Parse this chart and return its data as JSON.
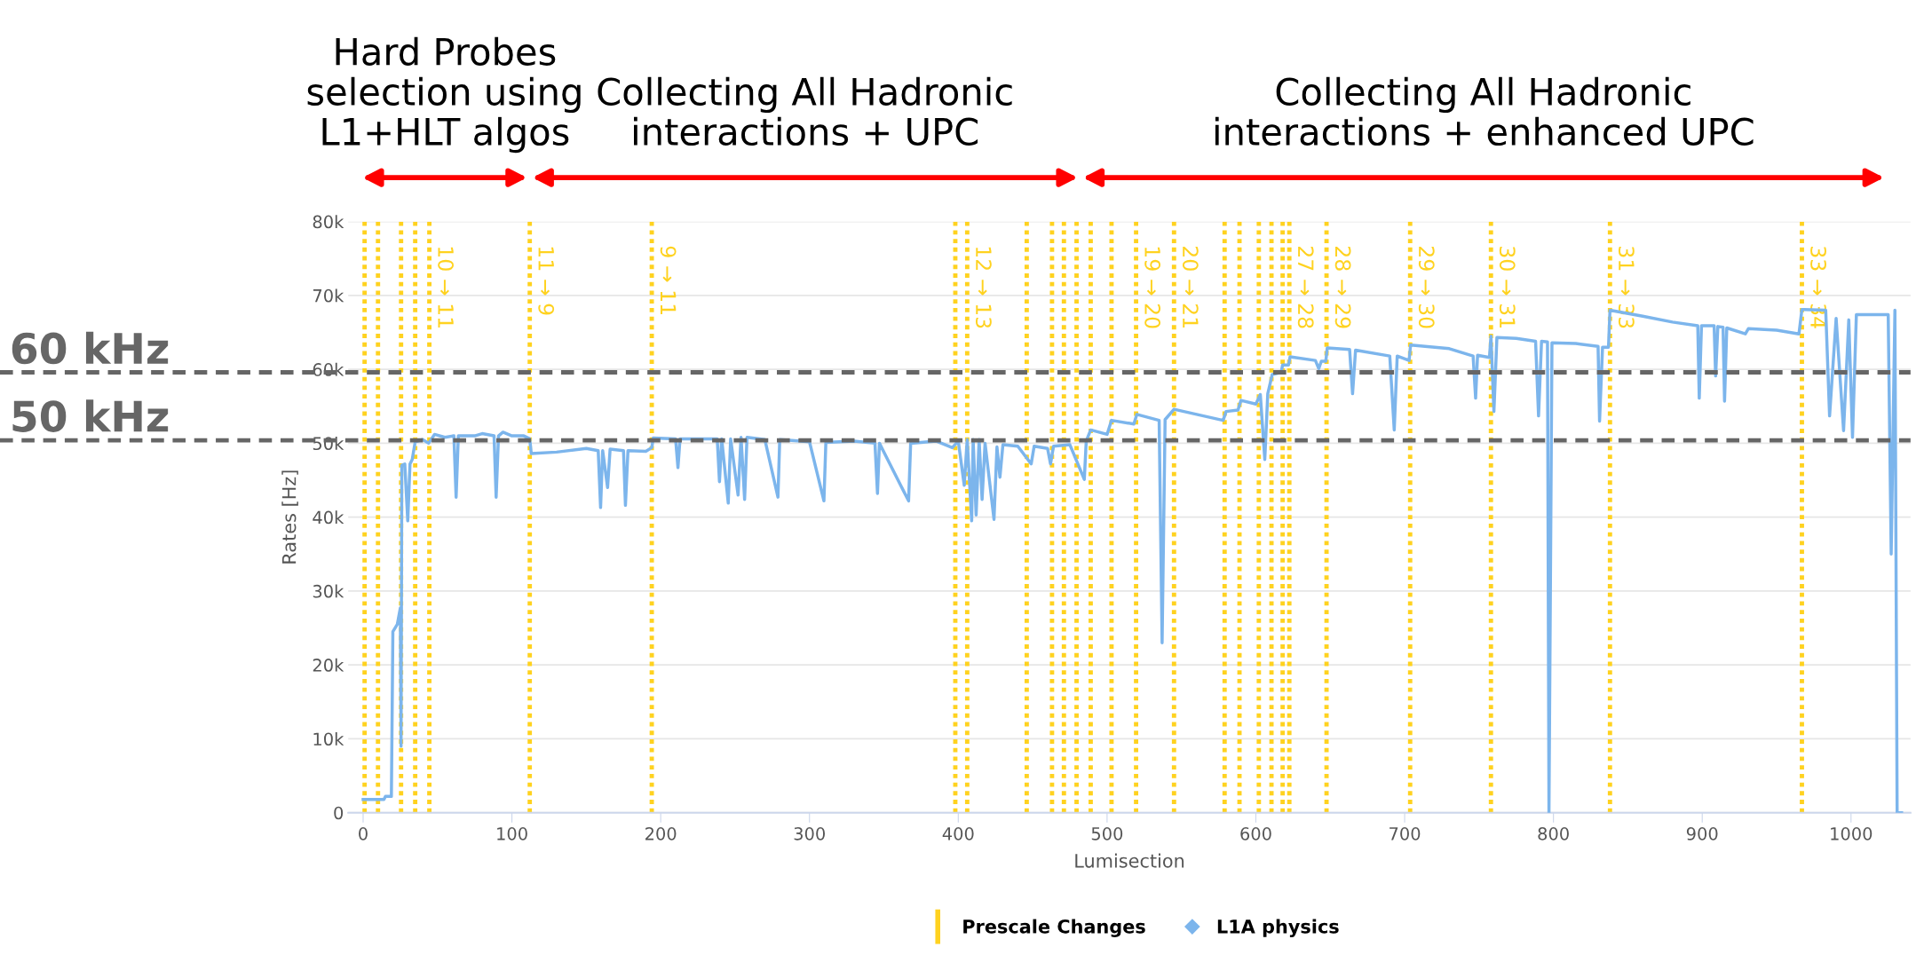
{
  "chart_data": {
    "type": "line",
    "xlabel": "Lumisection",
    "ylabel": "Rates [Hz]",
    "xlim": [
      -10,
      1040
    ],
    "xticks": [
      0,
      100,
      200,
      300,
      400,
      500,
      600,
      700,
      800,
      900,
      1000
    ],
    "ylim": [
      0,
      80000
    ],
    "yticks": [
      0,
      {
        "value": 10000,
        "label": "10k"
      },
      {
        "value": 20000,
        "label": "20k"
      },
      {
        "value": 30000,
        "label": "30k"
      },
      {
        "value": 40000,
        "label": "40k"
      },
      {
        "value": 50000,
        "label": "50k"
      },
      {
        "value": 60000,
        "label": "60k"
      },
      {
        "value": 70000,
        "label": "70k"
      },
      {
        "value": 80000,
        "label": "80k"
      }
    ],
    "grid": "y",
    "legend": "bottom",
    "marker": "none",
    "line_style": "solid",
    "annotations": [
      "Prescale Changes",
      "Hard Probes\nselection using\nL1+HLT algos",
      "Collecting All Hadronic\ninteractions + UPC",
      "Collecting All Hadronic\ninteractions + enhanced UPC"
    ],
    "series": [
      {
        "name": "L1A physics",
        "color": "#7cb5ec",
        "x": [
          0,
          14,
          15,
          19,
          20,
          23,
          25,
          25.5,
          26,
          28,
          30,
          31.5,
          33,
          35,
          40,
          44,
          48,
          55,
          61,
          62.5,
          64,
          75,
          80,
          88,
          89.4,
          91,
          94,
          100,
          108,
          112,
          113,
          130,
          150,
          158,
          159.6,
          161,
          164.3,
          166,
          175,
          176.3,
          178,
          190,
          194,
          195,
          210,
          211.6,
          213,
          230,
          238,
          239.5,
          241,
          245.4,
          247,
          252,
          254,
          256.4,
          258,
          270,
          278.8,
          280,
          300,
          309.7,
          311,
          330,
          344,
          345.7,
          347,
          366.6,
          368,
          385,
          396,
          400,
          404,
          406,
          409,
          410,
          412,
          414,
          416,
          418,
          424,
          426,
          428,
          430,
          440,
          449,
          451,
          460,
          462,
          464,
          475,
          484.7,
          486,
          489,
          500,
          503,
          518,
          520,
          535,
          537,
          539,
          545,
          578,
          580,
          588,
          590,
          600,
          603,
          606,
          608,
          611,
          617,
          618,
          622,
          623,
          640,
          642.3,
          644,
          647,
          648,
          663,
          665,
          667,
          690,
          693,
          695,
          703,
          704,
          730,
          746,
          747.7,
          749,
          757,
          758,
          760,
          762,
          775,
          788,
          790,
          792,
          796,
          797,
          799,
          815,
          830,
          831,
          833,
          837,
          838,
          860,
          880,
          897,
          898,
          899.5,
          908,
          909,
          910.5,
          914,
          915,
          916.5,
          929,
          931,
          950,
          965,
          967,
          983,
          985.6,
          990,
          995,
          998.5,
          1001,
          1003.6,
          1025,
          1027,
          1029.5,
          1031,
          1034
        ],
        "values": [
          1800,
          1800,
          2200,
          2200,
          24500,
          25500,
          27700,
          9000,
          47000,
          47200,
          39500,
          47200,
          47800,
          50200,
          50500,
          50000,
          51200,
          50800,
          51000,
          42700,
          51000,
          51000,
          51300,
          51000,
          42700,
          51000,
          51500,
          51000,
          51000,
          50600,
          48600,
          48800,
          49300,
          49000,
          41300,
          49000,
          44000,
          49200,
          49000,
          41600,
          49000,
          48900,
          49400,
          50700,
          50600,
          46700,
          50600,
          50600,
          50600,
          44800,
          50600,
          41900,
          50600,
          43000,
          50800,
          42400,
          50800,
          50500,
          42700,
          50500,
          50200,
          42200,
          50100,
          50300,
          50000,
          43200,
          50000,
          42200,
          50000,
          50300,
          49400,
          50300,
          44300,
          50500,
          39500,
          50500,
          40300,
          50500,
          42400,
          50000,
          39700,
          49500,
          45400,
          49800,
          49600,
          47200,
          49600,
          49300,
          47200,
          49600,
          49800,
          45100,
          50300,
          51800,
          51200,
          53100,
          52600,
          53900,
          53100,
          23000,
          53200,
          54600,
          53100,
          54300,
          54500,
          55800,
          55300,
          56600,
          47800,
          56700,
          59300,
          59600,
          60600,
          60600,
          61700,
          61200,
          60100,
          61100,
          61100,
          62900,
          62700,
          56700,
          62600,
          61800,
          51800,
          61800,
          61200,
          63300,
          62800,
          61800,
          56100,
          61900,
          61600,
          64500,
          54300,
          64300,
          64200,
          63800,
          53700,
          63800,
          63700,
          0,
          63600,
          63500,
          63100,
          53000,
          63000,
          63000,
          68000,
          67200,
          66400,
          65900,
          56100,
          65900,
          65900,
          59100,
          65800,
          65700,
          55700,
          65600,
          64800,
          65500,
          65300,
          64800,
          68100,
          68000,
          53700,
          66900,
          51700,
          66700,
          50800,
          67400,
          67400,
          35000,
          68000,
          0,
          0
        ]
      }
    ],
    "ref_lines": [
      {
        "axis": "y",
        "value": 59600,
        "label": "60 kHz",
        "color": "#666666",
        "line_style": "dashed"
      },
      {
        "axis": "y",
        "value": 50400,
        "label": "50 kHz",
        "color": "#666666",
        "line_style": "dashed"
      },
      {
        "axis": "x",
        "value": 1,
        "label": null,
        "color": "#ffd21f",
        "line_style": "dotted"
      },
      {
        "axis": "x",
        "value": 10,
        "label": null,
        "color": "#ffd21f",
        "line_style": "dotted"
      },
      {
        "axis": "x",
        "value": 25.5,
        "label": null,
        "color": "#ffd21f",
        "line_style": "dotted"
      },
      {
        "axis": "x",
        "value": 35,
        "label": null,
        "color": "#ffd21f",
        "line_style": "dotted"
      },
      {
        "axis": "x",
        "value": 44.5,
        "label": "10 → 11",
        "color": "#ffd21f",
        "line_style": "dotted"
      },
      {
        "axis": "x",
        "value": 112,
        "label": "11 → 9",
        "color": "#ffd21f",
        "line_style": "dotted"
      },
      {
        "axis": "x",
        "value": 194,
        "label": "9 → 11",
        "color": "#ffd21f",
        "line_style": "dotted"
      },
      {
        "axis": "x",
        "value": 398,
        "label": null,
        "color": "#ffd21f",
        "line_style": "dotted"
      },
      {
        "axis": "x",
        "value": 406,
        "label": "12 → 13",
        "color": "#ffd21f",
        "line_style": "dotted"
      },
      {
        "axis": "x",
        "value": 446,
        "label": null,
        "color": "#ffd21f",
        "line_style": "dotted"
      },
      {
        "axis": "x",
        "value": 463,
        "label": null,
        "color": "#ffd21f",
        "line_style": "dotted"
      },
      {
        "axis": "x",
        "value": 471,
        "label": null,
        "color": "#ffd21f",
        "line_style": "dotted"
      },
      {
        "axis": "x",
        "value": 479.5,
        "label": null,
        "color": "#ffd21f",
        "line_style": "dotted"
      },
      {
        "axis": "x",
        "value": 489,
        "label": null,
        "color": "#ffd21f",
        "line_style": "dotted"
      },
      {
        "axis": "x",
        "value": 503,
        "label": null,
        "color": "#ffd21f",
        "line_style": "dotted"
      },
      {
        "axis": "x",
        "value": 519.5,
        "label": "19 → 20",
        "color": "#ffd21f",
        "line_style": "dotted"
      },
      {
        "axis": "x",
        "value": 545,
        "label": "20 → 21",
        "color": "#ffd21f",
        "line_style": "dotted"
      },
      {
        "axis": "x",
        "value": 579,
        "label": null,
        "color": "#ffd21f",
        "line_style": "dotted"
      },
      {
        "axis": "x",
        "value": 589,
        "label": null,
        "color": "#ffd21f",
        "line_style": "dotted"
      },
      {
        "axis": "x",
        "value": 602,
        "label": null,
        "color": "#ffd21f",
        "line_style": "dotted"
      },
      {
        "axis": "x",
        "value": 610.5,
        "label": null,
        "color": "#ffd21f",
        "line_style": "dotted"
      },
      {
        "axis": "x",
        "value": 618,
        "label": null,
        "color": "#ffd21f",
        "line_style": "dotted"
      },
      {
        "axis": "x",
        "value": 622.5,
        "label": "27 → 28",
        "color": "#ffd21f",
        "line_style": "dotted"
      },
      {
        "axis": "x",
        "value": 647.5,
        "label": "28 → 29",
        "color": "#ffd21f",
        "line_style": "dotted"
      },
      {
        "axis": "x",
        "value": 703.7,
        "label": "29 → 30",
        "color": "#ffd21f",
        "line_style": "dotted"
      },
      {
        "axis": "x",
        "value": 758,
        "label": "30 → 31",
        "color": "#ffd21f",
        "line_style": "dotted"
      },
      {
        "axis": "x",
        "value": 838,
        "label": "31 → 33",
        "color": "#ffd21f",
        "line_style": "dotted"
      },
      {
        "axis": "x",
        "value": 967,
        "label": "33 → 34",
        "color": "#ffd21f",
        "line_style": "dotted"
      }
    ]
  }
}
